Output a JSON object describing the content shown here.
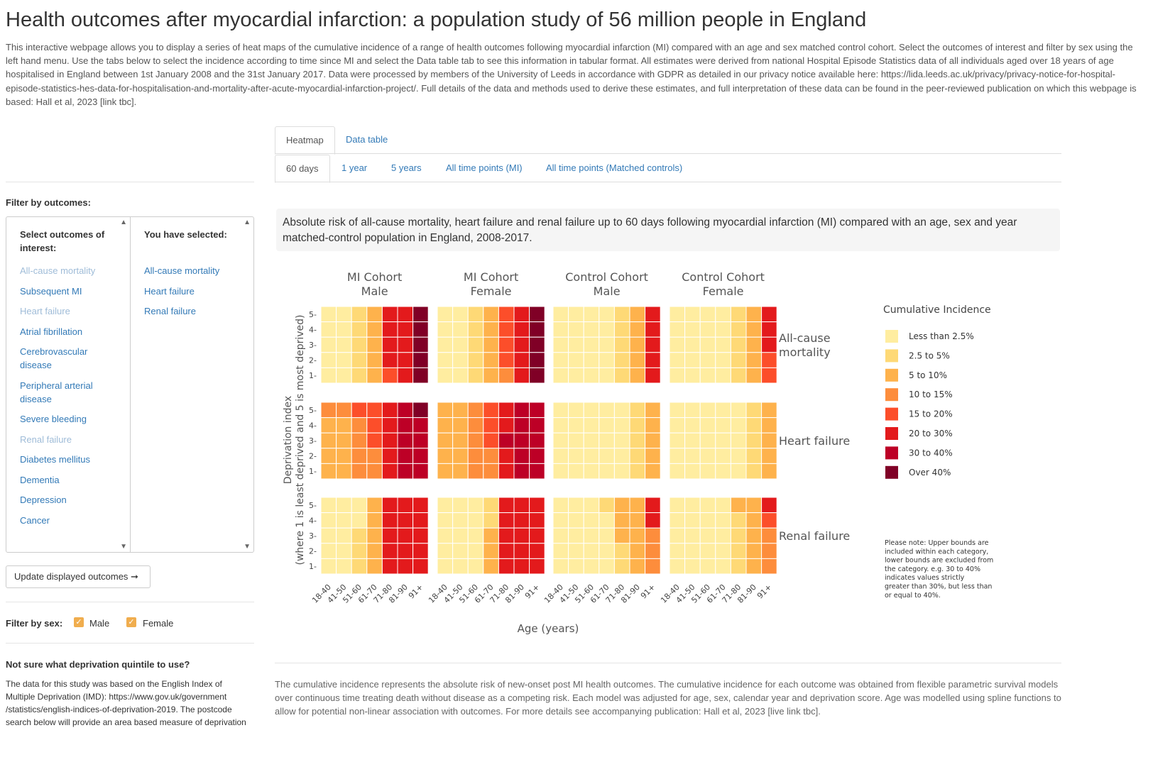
{
  "page": {
    "title": "Health outcomes after myocardial infarction: a population study of 56 million people in England",
    "intro": "This interactive webpage allows you to display a series of heat maps of the cumulative incidence of a range of health outcomes following myocardial infarction (MI) compared with an age and sex matched control cohort. Select the outcomes of interest and filter by sex using the left hand menu. Use the tabs below to select the incidence according to time since MI and select the Data table tab to see this information in tabular format. All estimates were derived from national Hospital Episode Statistics data of all individuals aged over 18 years of age hospitalised in England between 1st January 2008 and the 31st January 2017. Data were processed by members of the University of Leeds in accordance with GDPR as detailed in our privacy notice available here: https://lida.leeds.ac.uk/privacy/privacy-notice-for-hospital-episode-statistics-hes-data-for-hospitalisation-and-mortality-after-acute-myocardial-infarction-project/. Full details of the data and methods used to derive these estimates, and full interpretation of these data can be found in the peer-reviewed publication on which this webpage is based: Hall et al, 2023 [link tbc]."
  },
  "sidebar": {
    "filter_outcomes_label": "Filter by outcomes:",
    "select_header": "Select outcomes of interest:",
    "selected_header": "You have selected:",
    "outcomes": [
      {
        "label": "All-cause mortality",
        "selected": true
      },
      {
        "label": "Subsequent MI",
        "selected": false
      },
      {
        "label": "Heart failure",
        "selected": true
      },
      {
        "label": "Atrial fibrillation",
        "selected": false
      },
      {
        "label": "Cerebrovascular disease",
        "selected": false
      },
      {
        "label": "Peripheral arterial disease",
        "selected": false
      },
      {
        "label": "Severe bleeding",
        "selected": false
      },
      {
        "label": "Renal failure",
        "selected": true
      },
      {
        "label": "Diabetes mellitus",
        "selected": false
      },
      {
        "label": "Dementia",
        "selected": false
      },
      {
        "label": "Depression",
        "selected": false
      },
      {
        "label": "Cancer",
        "selected": false
      }
    ],
    "selected_items": [
      "All-cause mortality",
      "Heart failure",
      "Renal failure"
    ],
    "update_button": "Update displayed outcomes ➞",
    "filter_sex_label": "Filter by sex:",
    "sex_options": [
      {
        "label": "Male",
        "checked": true
      },
      {
        "label": "Female",
        "checked": true
      }
    ],
    "deprivation_heading": "Not sure what deprivation quintile to use?",
    "deprivation_text": "The data for this study was based on the English Index of Multiple Deprivation (IMD): https://www.gov.uk/government /statistics/english-indices-of-deprivation-2019. The postcode search below will provide an area based measure of deprivation"
  },
  "tabs": {
    "main": [
      "Heatmap",
      "Data table"
    ],
    "main_active": 0,
    "sub": [
      "60 days",
      "1 year",
      "5 years",
      "All time points (MI)",
      "All time points (Matched controls)"
    ],
    "sub_active": 0
  },
  "description": "Absolute risk of all-cause mortality, heart failure and renal failure up to 60 days following myocardial infarction (MI) compared with an age, sex and year matched-control population in England, 2008-2017.",
  "bottom_text": "The cumulative incidence represents the absolute risk of new-onset post MI health outcomes. The cumulative incidence for each outcome was obtained from flexible parametric survival models over continuous time treating death without disease as a competing risk. Each model was adjusted for age, sex, calendar year and deprivation score. Age was modelled using spline functions to allow for potential non-linear association with outcomes. For more details see accompanying publication: Hall et al, 2023 [live link tbc].",
  "chart_data": {
    "type": "heatmap",
    "xlabel": "Age (years)",
    "ylabel_lines": [
      "Deprivation index",
      "(where 1 is least deprived and 5 is most deprived)"
    ],
    "age_groups": [
      "18-40",
      "41-50",
      "51-60",
      "61-70",
      "71-80",
      "81-90",
      "91+"
    ],
    "deprivation_levels": [
      "5",
      "4",
      "3",
      "2",
      "1"
    ],
    "columns": [
      [
        "MI Cohort",
        "Male"
      ],
      [
        "MI Cohort",
        "Female"
      ],
      [
        "Control Cohort",
        "Male"
      ],
      [
        "Control Cohort",
        "Female"
      ]
    ],
    "outcomes": [
      "All-cause mortality",
      "Heart failure",
      "Renal failure"
    ],
    "legend_title": "Cumulative Incidence",
    "legend_position": "right",
    "categories": [
      {
        "label": "Less than 2.5%",
        "color": "#ffeda0"
      },
      {
        "label": "2.5 to 5%",
        "color": "#fed976"
      },
      {
        "label": "5 to 10%",
        "color": "#feb24c"
      },
      {
        "label": "10 to 15%",
        "color": "#fd8d3c"
      },
      {
        "label": "15 to 20%",
        "color": "#fc4e2a"
      },
      {
        "label": "20 to 30%",
        "color": "#e31a1c"
      },
      {
        "label": "30 to 40%",
        "color": "#bd0026"
      },
      {
        "label": "Over 40%",
        "color": "#800026"
      }
    ],
    "note": "Please note: Upper bounds are included within each category, lower bounds are excluded from the category. e.g. 30 to 40% indicates values strictly greater than 30%, but less than or equal to 40%.",
    "category_index_note": "cells give category index 0-7 per legend; rows ordered deprivation 5,4,3,2,1",
    "cells": [
      [
        [
          [
            0,
            0,
            1,
            2,
            5,
            5,
            7
          ],
          [
            0,
            0,
            1,
            2,
            5,
            5,
            7
          ],
          [
            0,
            0,
            1,
            2,
            5,
            5,
            7
          ],
          [
            0,
            0,
            1,
            2,
            5,
            5,
            7
          ],
          [
            0,
            0,
            1,
            2,
            4,
            5,
            7
          ]
        ],
        [
          [
            0,
            0,
            1,
            2,
            4,
            5,
            7
          ],
          [
            0,
            0,
            1,
            2,
            4,
            5,
            7
          ],
          [
            0,
            0,
            1,
            2,
            4,
            5,
            7
          ],
          [
            0,
            0,
            1,
            2,
            4,
            5,
            7
          ],
          [
            0,
            0,
            1,
            2,
            3,
            5,
            7
          ]
        ],
        [
          [
            0,
            0,
            0,
            0,
            1,
            2,
            5
          ],
          [
            0,
            0,
            0,
            0,
            1,
            2,
            5
          ],
          [
            0,
            0,
            0,
            0,
            1,
            2,
            5
          ],
          [
            0,
            0,
            0,
            0,
            1,
            2,
            5
          ],
          [
            0,
            0,
            0,
            0,
            1,
            2,
            5
          ]
        ],
        [
          [
            0,
            0,
            0,
            0,
            1,
            2,
            5
          ],
          [
            0,
            0,
            0,
            0,
            1,
            2,
            5
          ],
          [
            0,
            0,
            0,
            0,
            1,
            2,
            5
          ],
          [
            0,
            0,
            0,
            0,
            1,
            2,
            4
          ],
          [
            0,
            0,
            0,
            0,
            1,
            2,
            4
          ]
        ]
      ],
      [
        [
          [
            3,
            3,
            4,
            4,
            5,
            6,
            7
          ],
          [
            2,
            2,
            3,
            4,
            5,
            6,
            6
          ],
          [
            2,
            2,
            3,
            4,
            5,
            6,
            6
          ],
          [
            2,
            2,
            3,
            3,
            5,
            6,
            6
          ],
          [
            2,
            2,
            3,
            3,
            5,
            6,
            6
          ]
        ],
        [
          [
            2,
            2,
            3,
            4,
            5,
            6,
            6
          ],
          [
            2,
            2,
            3,
            4,
            5,
            6,
            6
          ],
          [
            2,
            2,
            3,
            4,
            6,
            6,
            6
          ],
          [
            2,
            2,
            3,
            3,
            5,
            6,
            6
          ],
          [
            2,
            2,
            3,
            3,
            5,
            6,
            6
          ]
        ],
        [
          [
            0,
            0,
            0,
            0,
            0,
            1,
            2
          ],
          [
            0,
            0,
            0,
            0,
            0,
            1,
            2
          ],
          [
            0,
            0,
            0,
            0,
            0,
            1,
            2
          ],
          [
            0,
            0,
            0,
            0,
            0,
            1,
            2
          ],
          [
            0,
            0,
            0,
            0,
            0,
            1,
            2
          ]
        ],
        [
          [
            0,
            0,
            0,
            0,
            0,
            1,
            2
          ],
          [
            0,
            0,
            0,
            0,
            0,
            1,
            2
          ],
          [
            0,
            0,
            0,
            0,
            0,
            1,
            2
          ],
          [
            0,
            0,
            0,
            0,
            0,
            1,
            2
          ],
          [
            0,
            0,
            0,
            0,
            0,
            1,
            2
          ]
        ]
      ],
      [
        [
          [
            0,
            0,
            0,
            2,
            5,
            5,
            5
          ],
          [
            0,
            0,
            0,
            2,
            5,
            5,
            5
          ],
          [
            0,
            0,
            1,
            2,
            5,
            5,
            5
          ],
          [
            0,
            0,
            1,
            2,
            5,
            5,
            5
          ],
          [
            0,
            0,
            1,
            2,
            5,
            5,
            5
          ]
        ],
        [
          [
            0,
            0,
            0,
            1,
            5,
            5,
            5
          ],
          [
            0,
            0,
            0,
            1,
            5,
            5,
            5
          ],
          [
            0,
            0,
            0,
            2,
            5,
            5,
            5
          ],
          [
            0,
            0,
            0,
            2,
            5,
            5,
            5
          ],
          [
            0,
            0,
            0,
            2,
            5,
            5,
            5
          ]
        ],
        [
          [
            0,
            0,
            0,
            1,
            2,
            2,
            5
          ],
          [
            0,
            0,
            0,
            0,
            2,
            2,
            5
          ],
          [
            0,
            0,
            0,
            0,
            2,
            2,
            3
          ],
          [
            0,
            0,
            0,
            0,
            1,
            2,
            3
          ],
          [
            0,
            0,
            0,
            0,
            1,
            2,
            3
          ]
        ],
        [
          [
            0,
            0,
            0,
            0,
            2,
            2,
            5
          ],
          [
            0,
            0,
            0,
            0,
            1,
            2,
            4
          ],
          [
            0,
            0,
            0,
            0,
            1,
            2,
            3
          ],
          [
            0,
            0,
            0,
            0,
            1,
            2,
            3
          ],
          [
            0,
            0,
            0,
            0,
            1,
            2,
            3
          ]
        ]
      ]
    ]
  }
}
